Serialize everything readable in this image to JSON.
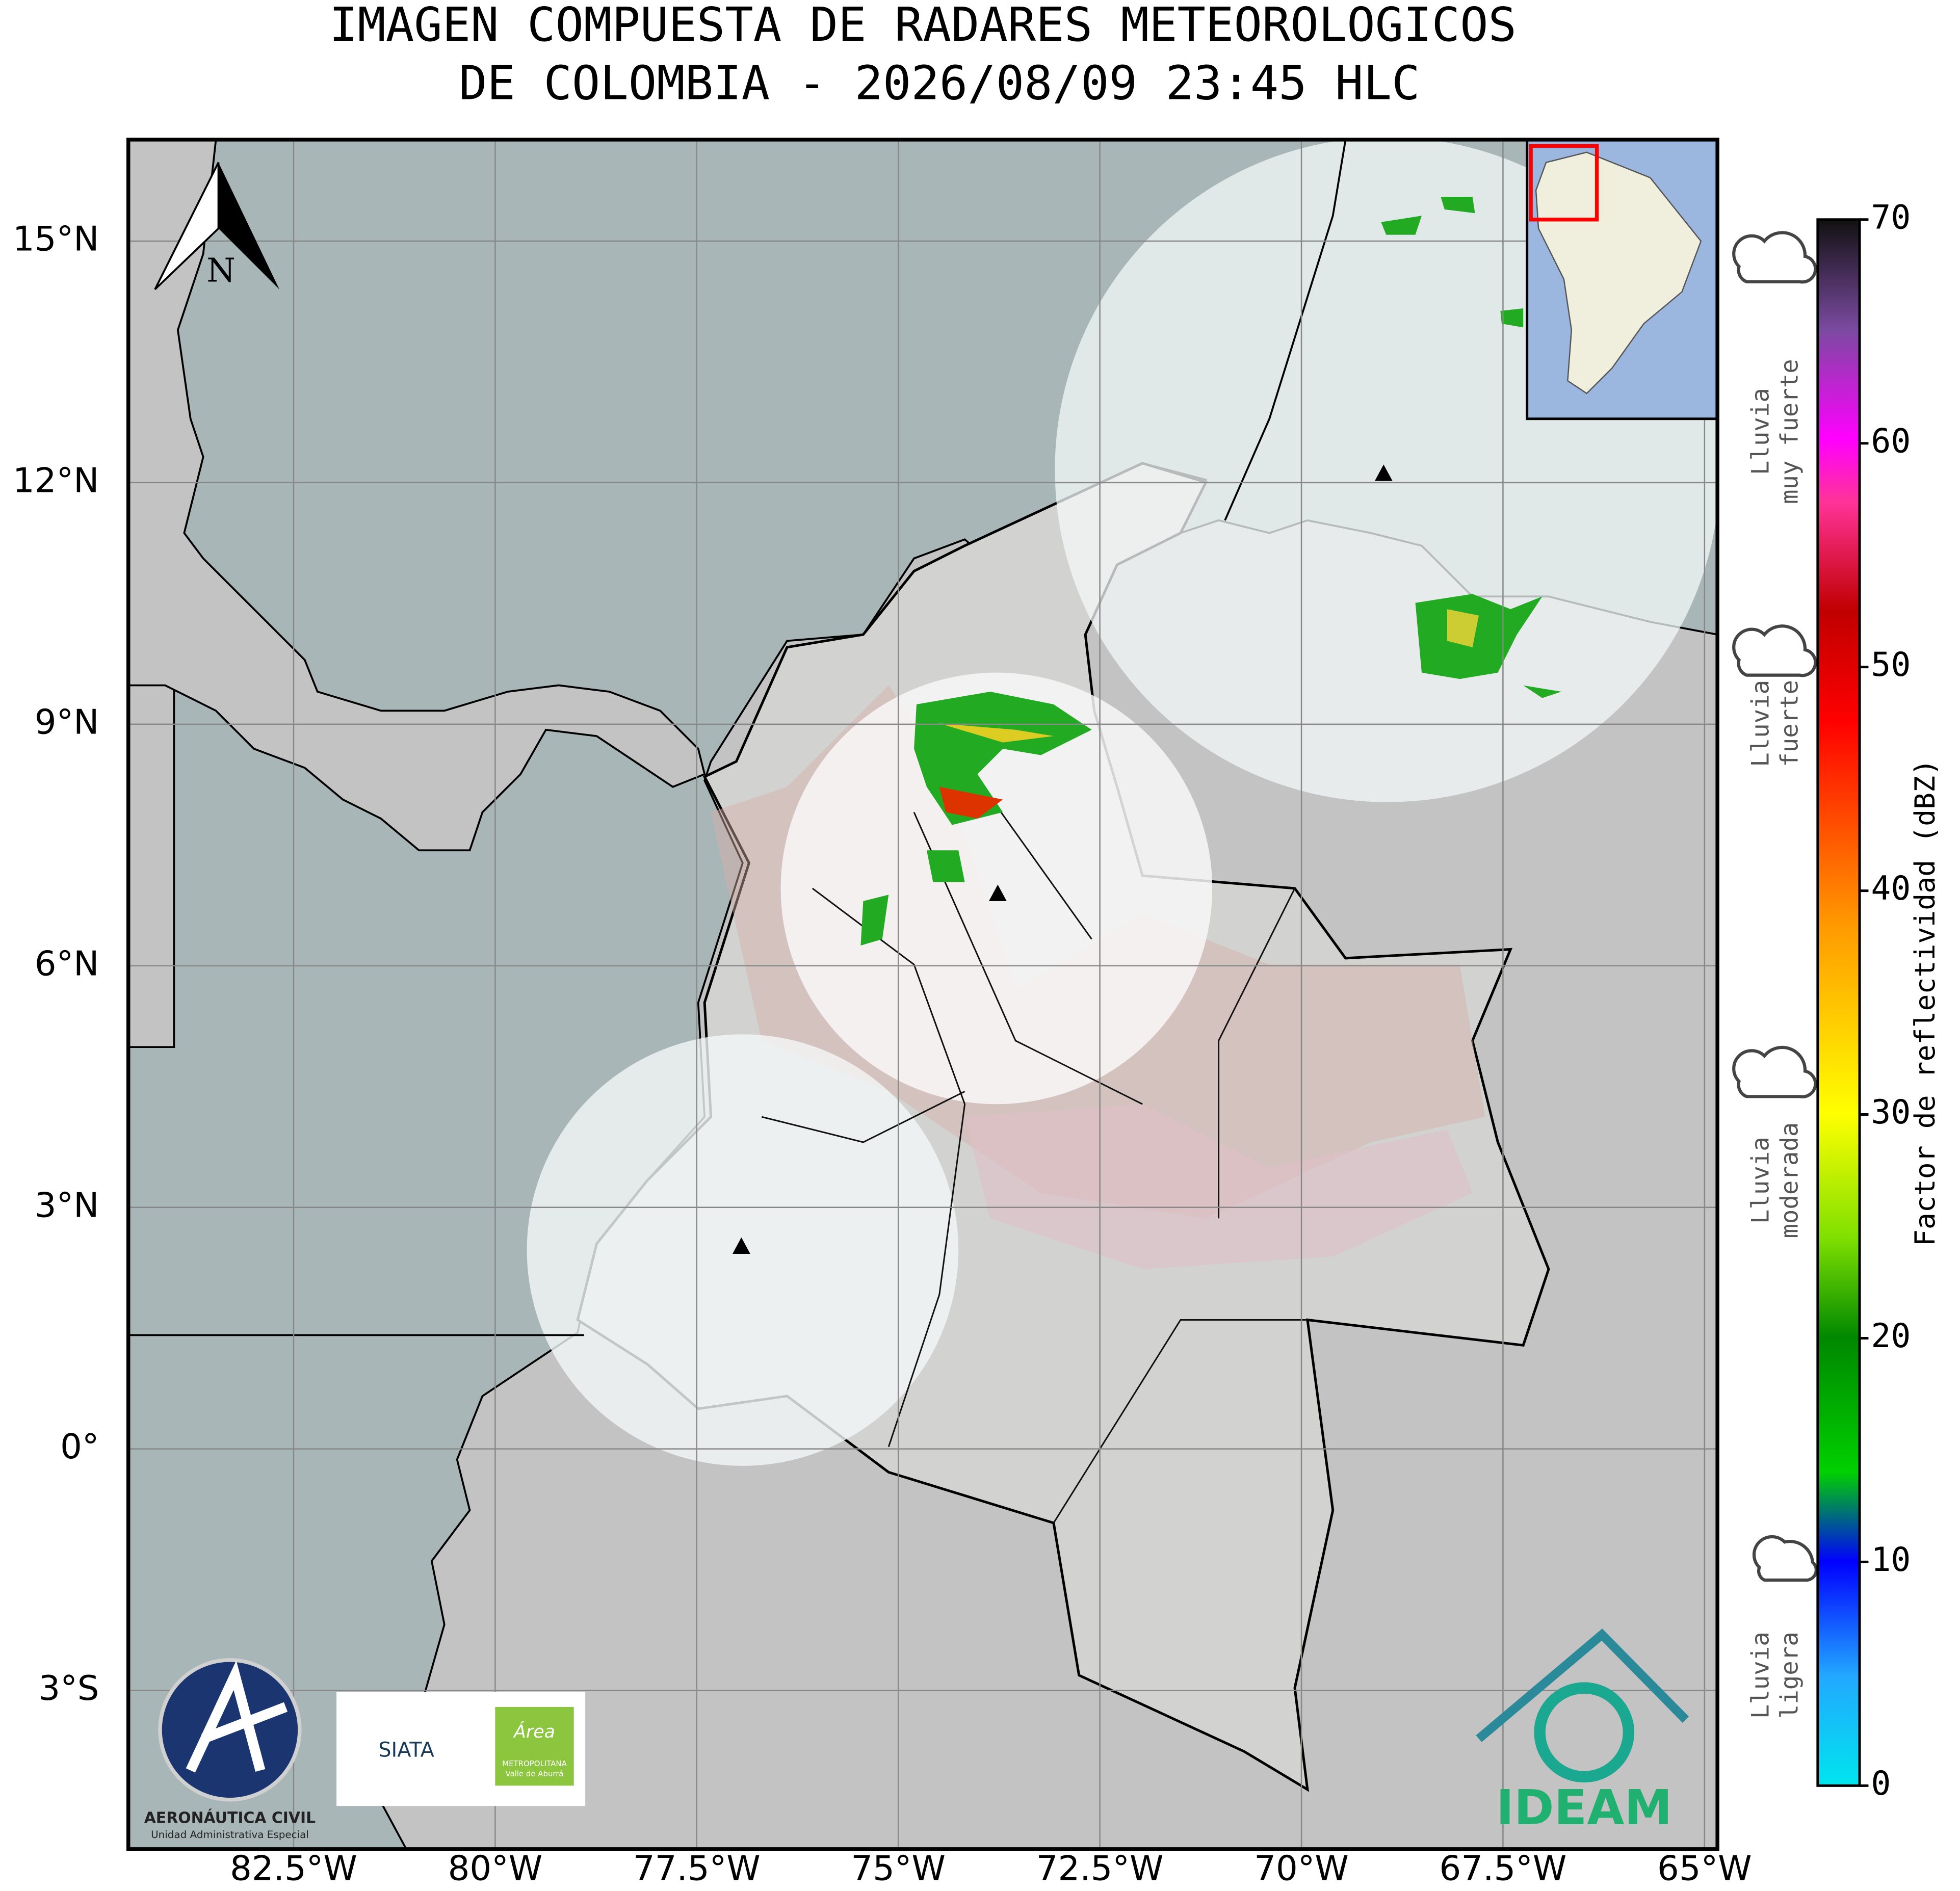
{
  "header": {
    "title_line1": "IMAGEN COMPUESTA DE RADARES METEOROLOGICOS",
    "title_line2": "DE COLOMBIA - 2026/08/09 23:45 HLC"
  },
  "map": {
    "xlim": [
      -84.55,
      -64.84
    ],
    "ylim": [
      -4.97,
      16.26
    ],
    "lat_ticks": [
      {
        "value": 15,
        "label": "15°N"
      },
      {
        "value": 12,
        "label": "12°N"
      },
      {
        "value": 9,
        "label": "9°N"
      },
      {
        "value": 6,
        "label": "6°N"
      },
      {
        "value": 3,
        "label": "3°N"
      },
      {
        "value": 0,
        "label": "0°"
      },
      {
        "value": -3,
        "label": "3°S"
      }
    ],
    "lon_ticks": [
      {
        "value": -82.5,
        "label": "82.5°W"
      },
      {
        "value": -80,
        "label": "80°W"
      },
      {
        "value": -77.5,
        "label": "77.5°W"
      },
      {
        "value": -75,
        "label": "75°W"
      },
      {
        "value": -72.5,
        "label": "72.5°W"
      },
      {
        "value": -70,
        "label": "70°W"
      },
      {
        "value": -67.5,
        "label": "67.5°W"
      },
      {
        "value": -65,
        "label": "65°W"
      }
    ],
    "north_label": "N"
  },
  "colorbar": {
    "label": "Factor de reflectividad (dBZ)",
    "lim": [
      0,
      70
    ],
    "ticks": [
      0,
      10,
      20,
      30,
      40,
      50,
      60,
      70
    ]
  },
  "legend": {
    "items": [
      {
        "line1": "Lluvia",
        "line2": "muy fuerte"
      },
      {
        "line1": "Lluvia",
        "line2": "fuerte"
      },
      {
        "line1": "Lluvia",
        "line2": "moderada"
      },
      {
        "line1": "Lluvia",
        "line2": "ligera"
      }
    ]
  },
  "logos": {
    "aerocivil_name": "AERONÁUTICA CIVIL",
    "aerocivil_sub": "Unidad Administrativa Especial",
    "siata": "SIATA",
    "area_line1": "Área",
    "area_line2": "METROPOLITANA",
    "area_line3": "Valle de Aburrá",
    "ideam": "IDEAM"
  }
}
